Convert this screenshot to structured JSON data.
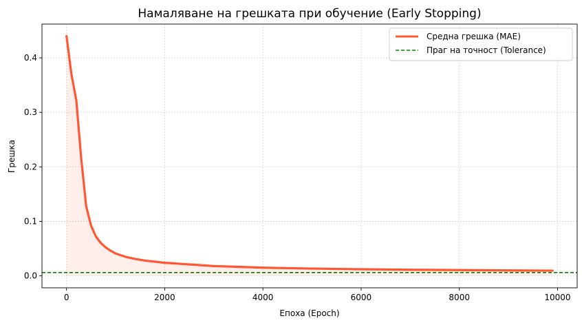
{
  "chart_data": {
    "type": "line",
    "title": "Намаляване на грешката при обучение (Early Stopping)",
    "xlabel": "Епоха (Epoch)",
    "ylabel": "Грешка",
    "xlim": [
      -500,
      10400
    ],
    "ylim": [
      -0.022,
      0.462
    ],
    "xticks": [
      0,
      2000,
      4000,
      6000,
      8000,
      10000
    ],
    "yticks": [
      0.0,
      0.1,
      0.2,
      0.3,
      0.4
    ],
    "xtick_labels": [
      "0",
      "2000",
      "4000",
      "6000",
      "8000",
      "10000"
    ],
    "ytick_labels": [
      "0.0",
      "0.1",
      "0.2",
      "0.3",
      "0.4"
    ],
    "grid": true,
    "legend_position": "top-right",
    "series": [
      {
        "name": "Средна грешка (MAE)",
        "color": "#ff5733",
        "fill": true,
        "x": [
          0,
          100,
          200,
          300,
          400,
          500,
          600,
          700,
          800,
          900,
          1000,
          1200,
          1400,
          1600,
          1800,
          2000,
          2500,
          3000,
          3500,
          4000,
          5000,
          6000,
          7000,
          8000,
          9000,
          9900
        ],
        "y": [
          0.44,
          0.37,
          0.322,
          0.215,
          0.128,
          0.092,
          0.072,
          0.06,
          0.052,
          0.046,
          0.041,
          0.035,
          0.031,
          0.028,
          0.026,
          0.024,
          0.021,
          0.018,
          0.0165,
          0.015,
          0.0133,
          0.0121,
          0.0112,
          0.0105,
          0.0099,
          0.0095
        ]
      },
      {
        "name": "Праг на точност (Tolerance)",
        "color": "#008000",
        "style": "dashed",
        "hline": 0.006
      }
    ]
  }
}
